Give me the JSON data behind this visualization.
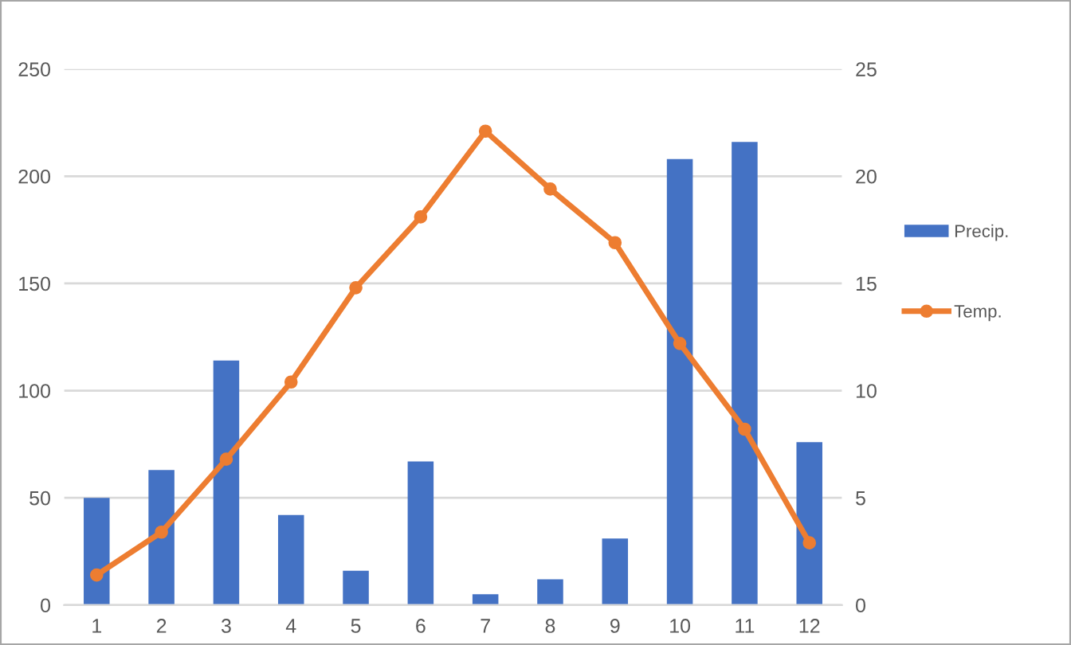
{
  "chart_data": {
    "type": "bar",
    "categories": [
      "1",
      "2",
      "3",
      "4",
      "5",
      "6",
      "7",
      "8",
      "9",
      "10",
      "11",
      "12"
    ],
    "series": [
      {
        "name": "Precip.",
        "color": "#4472c4",
        "values": [
          50,
          63,
          114,
          42,
          16,
          67,
          5,
          12,
          31,
          208,
          216,
          76
        ]
      },
      {
        "name": "Temp.",
        "type": "line",
        "axis": "y2",
        "color": "#ed7d31",
        "marker": "circle",
        "values": [
          1.4,
          3.4,
          6.8,
          10.4,
          14.8,
          18.1,
          22.1,
          19.4,
          16.9,
          12.2,
          8.2,
          2.9
        ]
      }
    ],
    "ylim": [
      0,
      250
    ],
    "yticks": [
      0,
      50,
      100,
      150,
      200,
      250
    ],
    "y2lim": [
      0,
      25
    ],
    "y2ticks": [
      0,
      5,
      10,
      15,
      20,
      25
    ],
    "grid": "y",
    "legend": "right"
  }
}
